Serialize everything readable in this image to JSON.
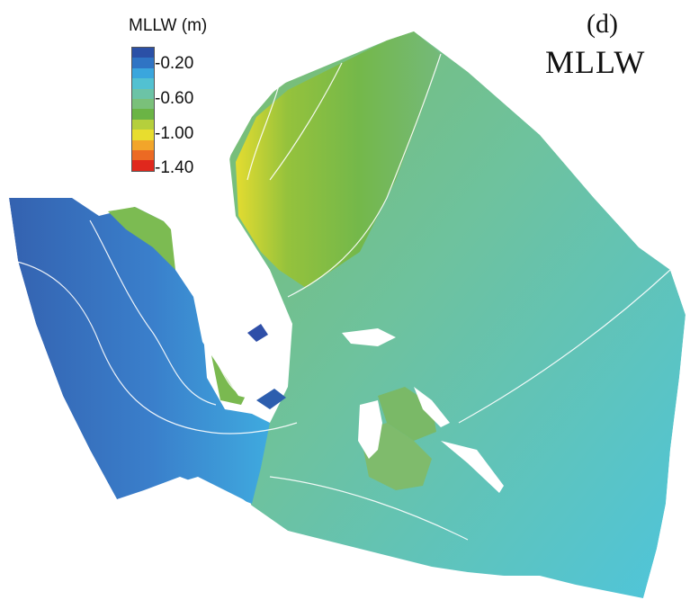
{
  "legend": {
    "title": "MLLW (m)",
    "ticks": [
      "-0.20",
      "-0.60",
      "-1.00",
      "-1.40"
    ],
    "colors": [
      "#2b50a6",
      "#2f74c4",
      "#3aa6dd",
      "#52c1d1",
      "#6cc3a6",
      "#7ac07a",
      "#6bb445",
      "#b5cf3c",
      "#e8dd2e",
      "#f2a52a",
      "#ec6a23",
      "#e0281d"
    ]
  },
  "panel": {
    "label": "(d)",
    "title": "MLLW"
  },
  "colors": {
    "deep_west": "#3567b4",
    "mid_west": "#3a9fdd",
    "coastal_green": "#72b94a",
    "central": "#6cc3a3",
    "southeast": "#4cc3dc",
    "land": "#ffffff",
    "contour": "#ffffff"
  }
}
